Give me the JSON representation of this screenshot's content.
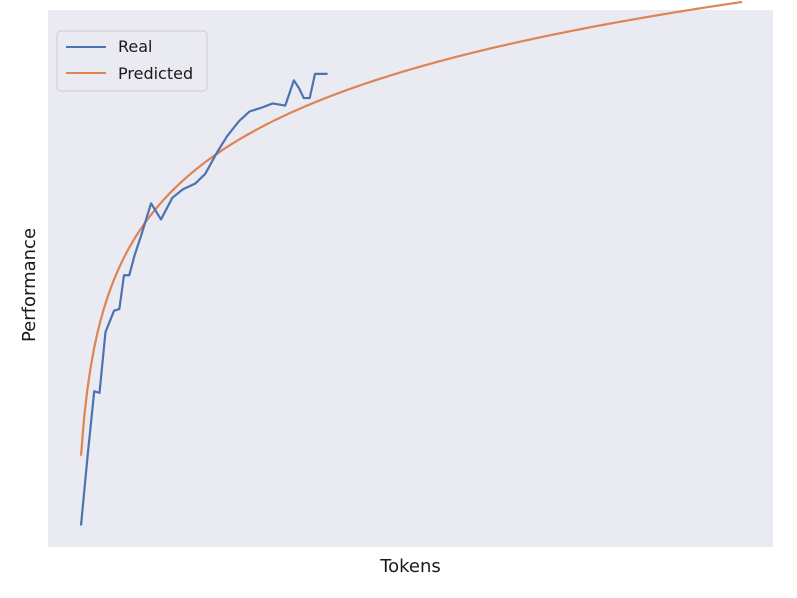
{
  "chart_data": {
    "type": "line",
    "xlabel": "Tokens",
    "ylabel": "Performance",
    "xlim": [
      0,
      100
    ],
    "ylim": [
      0,
      100
    ],
    "grid": false,
    "legend_position": "top-left",
    "series": [
      {
        "name": "Real",
        "color": "#4c72b0",
        "x": [
          0,
          1,
          2,
          2.8,
          3.7,
          5,
          5.8,
          6.5,
          7.3,
          8.1,
          9.1,
          10.6,
          12.1,
          13.8,
          15.4,
          17.3,
          18.8,
          20.5,
          22.1,
          23.9,
          25.5,
          27.3,
          29.0,
          30.9,
          32.2,
          33.0,
          33.7,
          34.6,
          35.4,
          36.2,
          37.3
        ],
        "y": [
          4,
          17,
          29,
          28.7,
          40,
          44,
          44.3,
          50.6,
          50.6,
          54.3,
          58,
          64,
          61,
          65,
          66.6,
          67.7,
          69.5,
          73.3,
          76.5,
          79.3,
          81.1,
          81.8,
          82.6,
          82.2,
          86.9,
          85.4,
          83.6,
          83.6,
          88.1,
          88.1,
          88.1
        ]
      },
      {
        "name": "Predicted",
        "color": "#dd8452",
        "fn": "log",
        "x_start": 0,
        "x_end": 100,
        "y_start": 17,
        "y_end": 101.5
      }
    ]
  }
}
